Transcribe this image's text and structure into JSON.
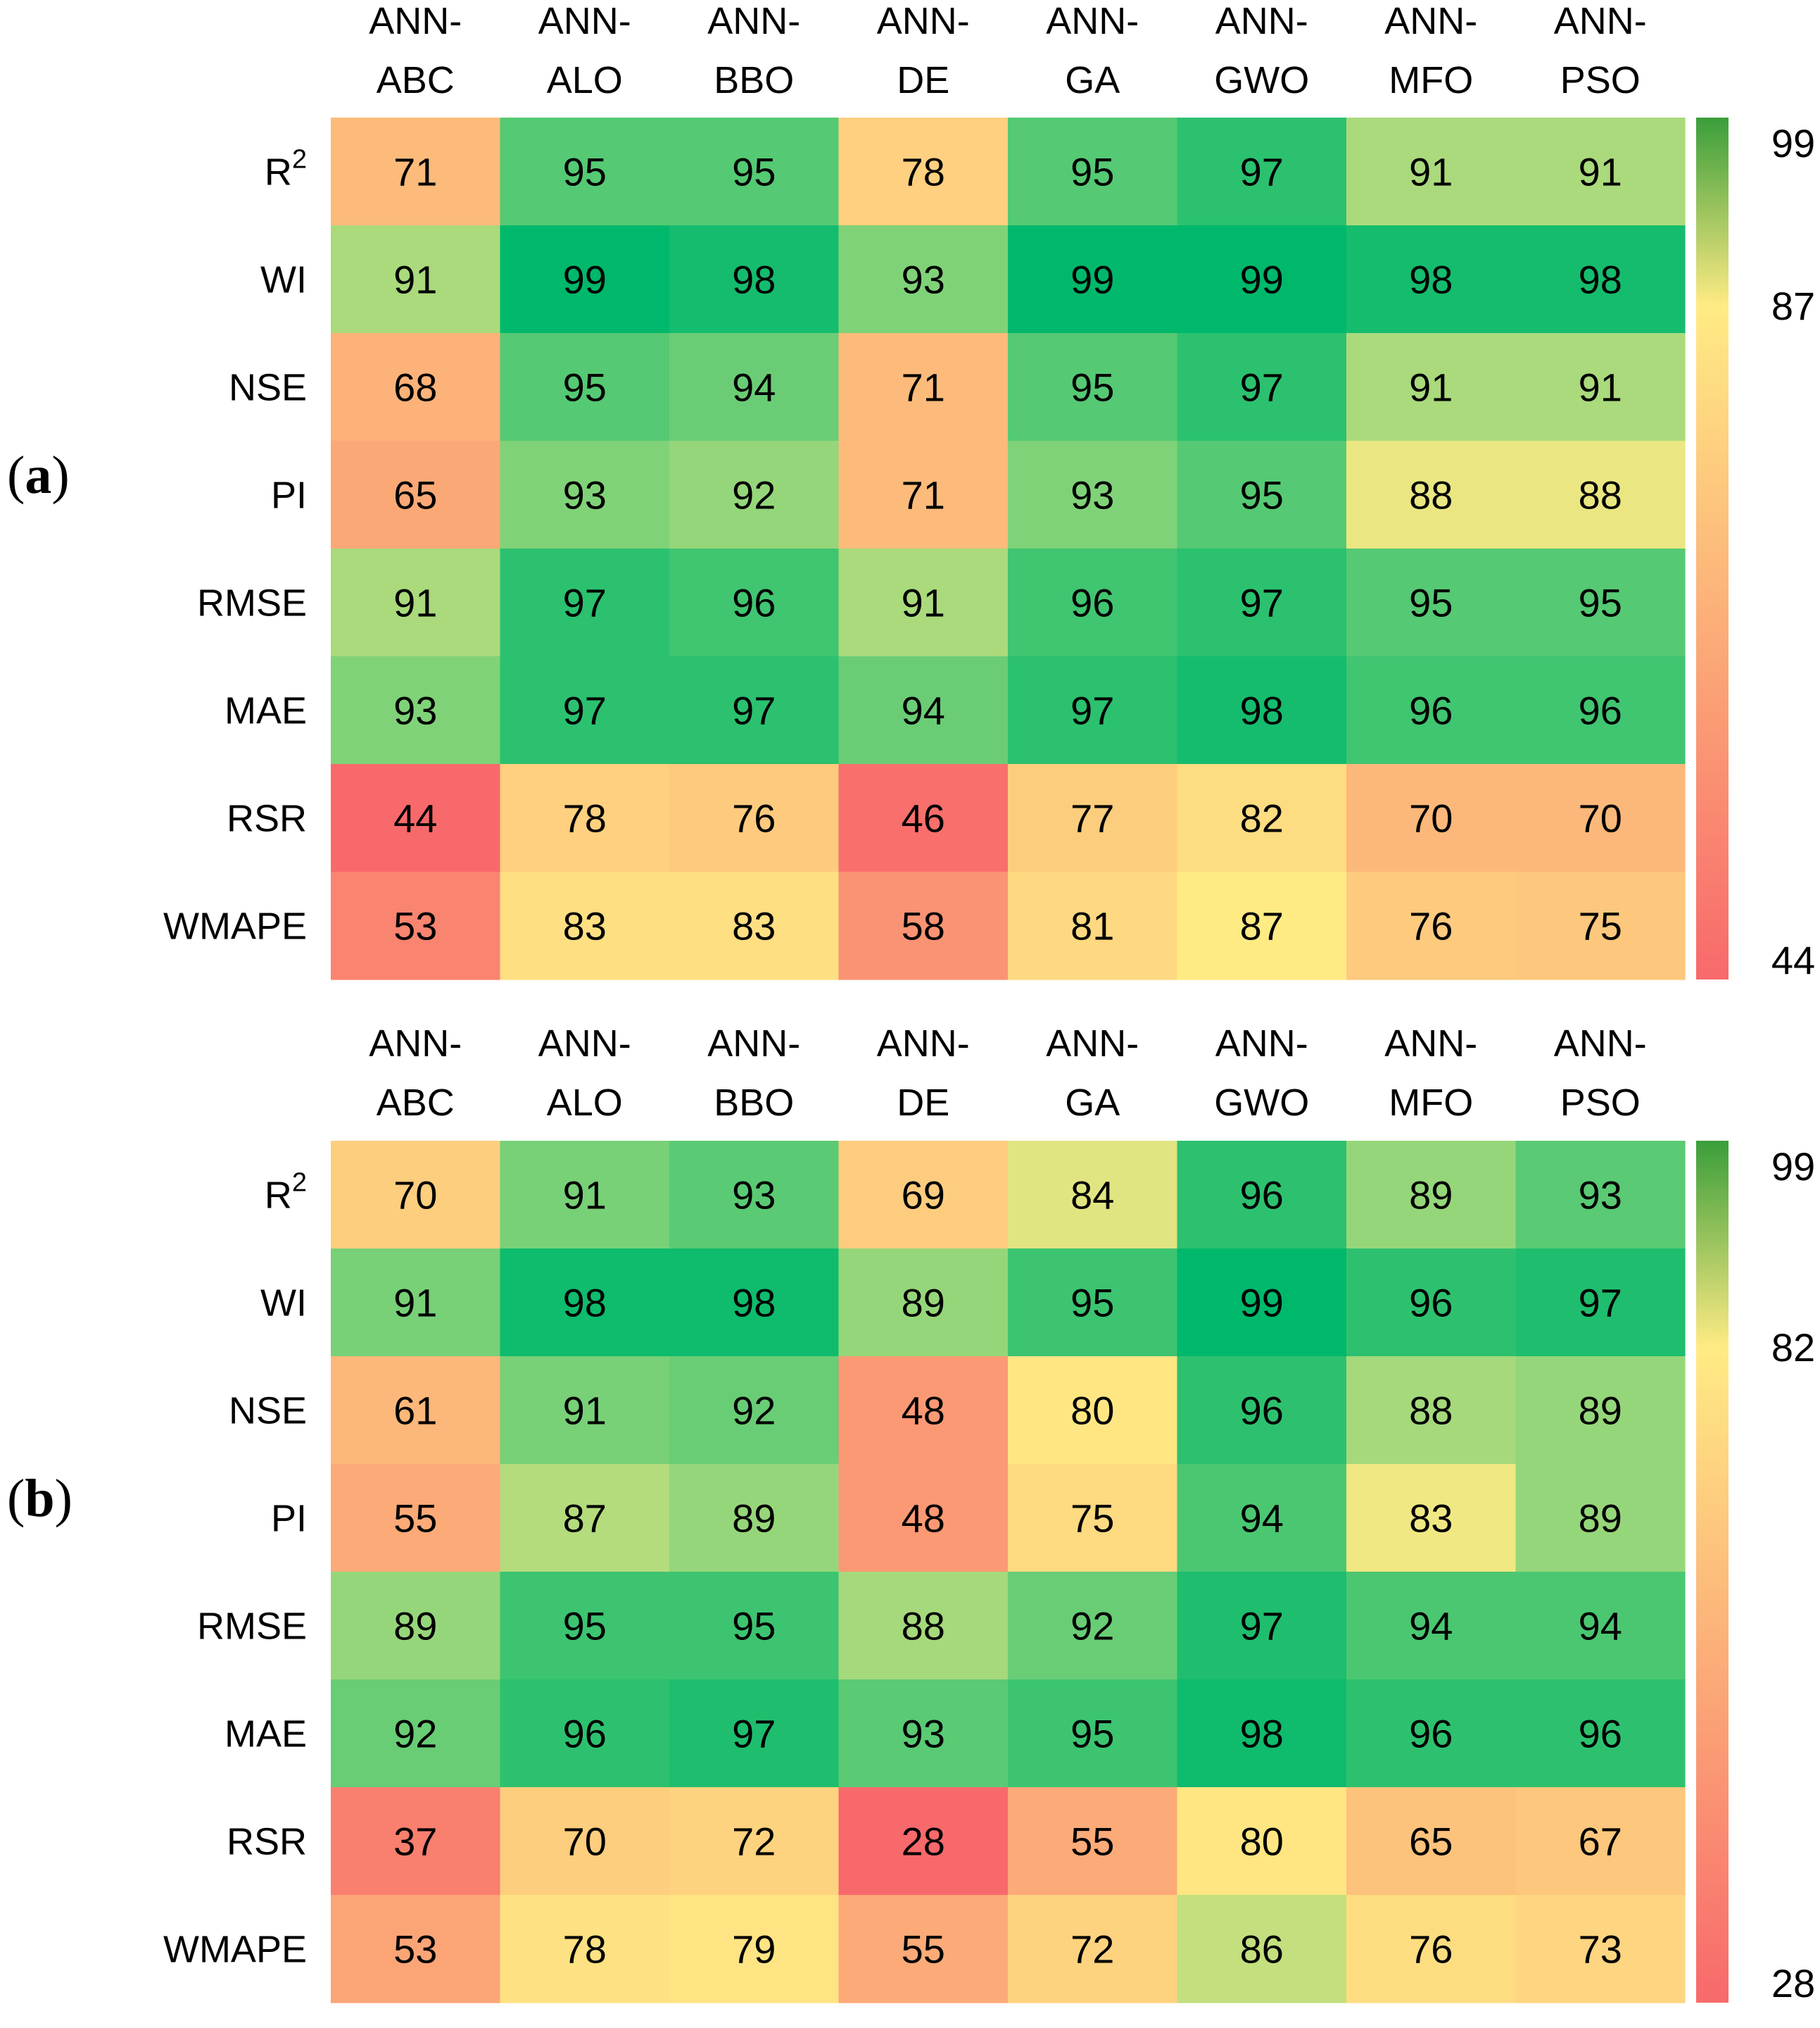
{
  "chart_data": [
    {
      "type": "heatmap",
      "panel_label_open": "(",
      "panel_label_letter": "a",
      "panel_label_close": ")",
      "columns": [
        {
          "line1": "ANN-",
          "line2": "ABC"
        },
        {
          "line1": "ANN-",
          "line2": "ALO"
        },
        {
          "line1": "ANN-",
          "line2": "BBO"
        },
        {
          "line1": "ANN-",
          "line2": "DE"
        },
        {
          "line1": "ANN-",
          "line2": "GA"
        },
        {
          "line1": "ANN-",
          "line2": "GWO"
        },
        {
          "line1": "ANN-",
          "line2": "MFO"
        },
        {
          "line1": "ANN-",
          "line2": "PSO"
        }
      ],
      "rows": [
        {
          "base": "R",
          "sup": "2"
        },
        {
          "base": "WI",
          "sup": ""
        },
        {
          "base": "NSE",
          "sup": ""
        },
        {
          "base": "PI",
          "sup": ""
        },
        {
          "base": "RMSE",
          "sup": ""
        },
        {
          "base": "MAE",
          "sup": ""
        },
        {
          "base": "RSR",
          "sup": ""
        },
        {
          "base": "WMAPE",
          "sup": ""
        }
      ],
      "values": [
        [
          71,
          95,
          95,
          78,
          95,
          97,
          91,
          91
        ],
        [
          91,
          99,
          98,
          93,
          99,
          99,
          98,
          98
        ],
        [
          68,
          95,
          94,
          71,
          95,
          97,
          91,
          91
        ],
        [
          65,
          93,
          92,
          71,
          93,
          95,
          88,
          88
        ],
        [
          91,
          97,
          96,
          91,
          96,
          97,
          95,
          95
        ],
        [
          93,
          97,
          97,
          94,
          97,
          98,
          96,
          96
        ],
        [
          44,
          78,
          76,
          46,
          77,
          82,
          70,
          70
        ],
        [
          53,
          83,
          83,
          58,
          81,
          87,
          76,
          75
        ]
      ],
      "colorbar": {
        "min": 44,
        "mid": 87,
        "max": 99,
        "labels": [
          "99",
          "87",
          "44"
        ]
      }
    },
    {
      "type": "heatmap",
      "panel_label_open": "(",
      "panel_label_letter": "b",
      "panel_label_close": ")",
      "columns": [
        {
          "line1": "ANN-",
          "line2": "ABC"
        },
        {
          "line1": "ANN-",
          "line2": "ALO"
        },
        {
          "line1": "ANN-",
          "line2": "BBO"
        },
        {
          "line1": "ANN-",
          "line2": "DE"
        },
        {
          "line1": "ANN-",
          "line2": "GA"
        },
        {
          "line1": "ANN-",
          "line2": "GWO"
        },
        {
          "line1": "ANN-",
          "line2": "MFO"
        },
        {
          "line1": "ANN-",
          "line2": "PSO"
        }
      ],
      "rows": [
        {
          "base": "R",
          "sup": "2"
        },
        {
          "base": "WI",
          "sup": ""
        },
        {
          "base": "NSE",
          "sup": ""
        },
        {
          "base": "PI",
          "sup": ""
        },
        {
          "base": "RMSE",
          "sup": ""
        },
        {
          "base": "MAE",
          "sup": ""
        },
        {
          "base": "RSR",
          "sup": ""
        },
        {
          "base": "WMAPE",
          "sup": ""
        }
      ],
      "values": [
        [
          70,
          91,
          93,
          69,
          84,
          96,
          89,
          93
        ],
        [
          91,
          98,
          98,
          89,
          95,
          99,
          96,
          97
        ],
        [
          61,
          91,
          92,
          48,
          80,
          96,
          88,
          89
        ],
        [
          55,
          87,
          89,
          48,
          75,
          94,
          83,
          89
        ],
        [
          89,
          95,
          95,
          88,
          92,
          97,
          94,
          94
        ],
        [
          92,
          96,
          97,
          93,
          95,
          98,
          96,
          96
        ],
        [
          37,
          70,
          72,
          28,
          55,
          80,
          65,
          67
        ],
        [
          53,
          78,
          79,
          55,
          72,
          86,
          76,
          73
        ]
      ],
      "colorbar": {
        "min": 28,
        "mid": 82,
        "max": 99,
        "labels": [
          "99",
          "82",
          "28"
        ]
      }
    }
  ],
  "colors": {
    "low": "#f8696b",
    "mid": "#ffeb84",
    "high": "#00b86b",
    "bar_high": "#3a9e3a"
  }
}
